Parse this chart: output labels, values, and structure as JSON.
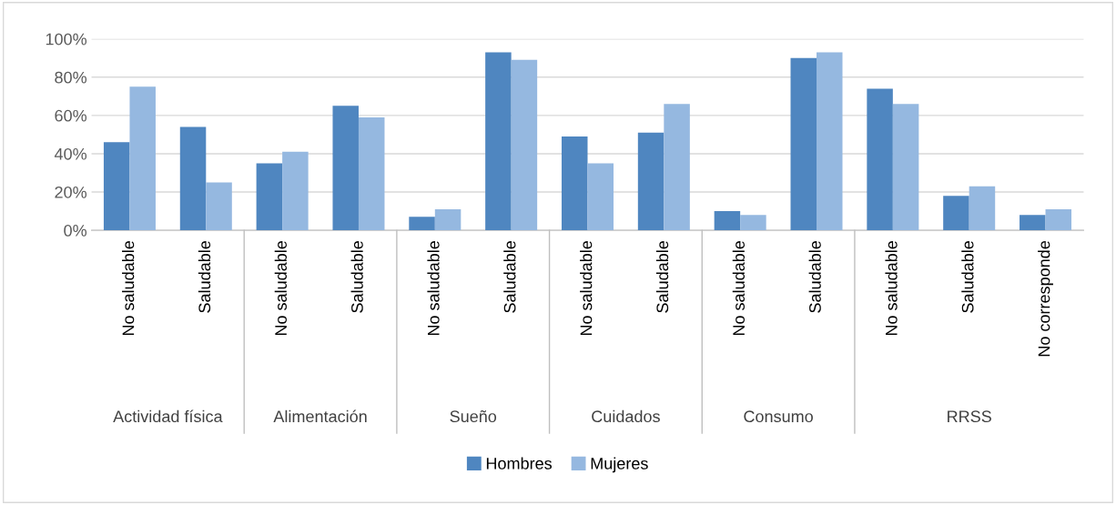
{
  "chart_data": {
    "type": "bar",
    "categories": [
      "No saludable",
      "Saludable",
      "No saludable",
      "Saludable",
      "No saludable",
      "Saludable",
      "No saludable",
      "Saludable",
      "No saludable",
      "Saludable",
      "No saludable",
      "Saludable",
      "No corresponde"
    ],
    "series": [
      {
        "name": "Hombres",
        "color": "#4f86c0",
        "values": [
          46,
          54,
          35,
          65,
          7,
          93,
          49,
          51,
          10,
          90,
          74,
          18,
          8
        ]
      },
      {
        "name": "Mujeres",
        "color": "#95b8e0",
        "values": [
          75,
          25,
          41,
          59,
          11,
          89,
          35,
          66,
          8,
          93,
          66,
          23,
          11
        ]
      }
    ],
    "annotations": [
      "Actividad física",
      "Alimentación",
      "Sueño",
      "Cuidados",
      "Consumo",
      "RRSS"
    ],
    "ylim": [
      0,
      100
    ],
    "yticks": [
      {
        "value": 0,
        "label": "0%"
      },
      {
        "value": 20,
        "label": "20%"
      },
      {
        "value": 40,
        "label": "40%"
      },
      {
        "value": 60,
        "label": "60%"
      },
      {
        "value": 80,
        "label": "80%"
      },
      {
        "value": 100,
        "label": "100%"
      }
    ],
    "grid": "y",
    "legend": "bottom"
  }
}
